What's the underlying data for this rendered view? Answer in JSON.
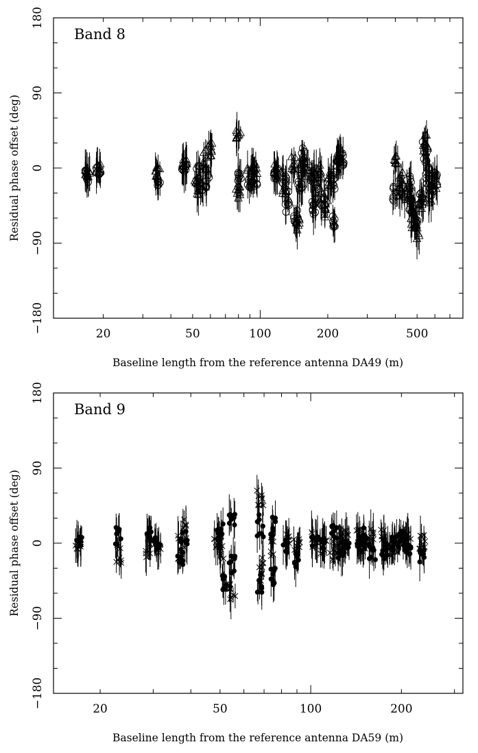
{
  "chart_data": [
    {
      "type": "scatter",
      "title": "Band 8",
      "xlabel": "Baseline length from the reference antenna DA49 (m)",
      "ylabel": "Residual phase offset (deg)",
      "x_scale": "log",
      "xlim": [
        12,
        800
      ],
      "ylim": [
        -180,
        180
      ],
      "xticks": [
        20,
        50,
        100,
        200,
        500
      ],
      "yticks": [
        -180,
        -90,
        0,
        90,
        180
      ],
      "yticklabels": [
        "−180",
        "−90",
        "0",
        "90",
        "180"
      ],
      "grid": false,
      "legend": "none",
      "series": [
        {
          "marker": "circle",
          "groups": [
            [
              17,
              -10,
              8
            ],
            [
              19,
              -5,
              6
            ],
            [
              35,
              -15,
              7
            ],
            [
              46,
              0,
              5
            ],
            [
              53,
              -5,
              10
            ],
            [
              55,
              -18,
              10
            ],
            [
              58,
              -12,
              12
            ],
            [
              80,
              -15,
              10
            ],
            [
              90,
              -18,
              8
            ],
            [
              95,
              -12,
              10
            ],
            [
              118,
              -8,
              8
            ],
            [
              128,
              -15,
              12
            ],
            [
              132,
              -40,
              14
            ],
            [
              145,
              -60,
              10
            ],
            [
              150,
              -5,
              15
            ],
            [
              153,
              -20,
              10
            ],
            [
              155,
              15,
              12
            ],
            [
              170,
              -10,
              12
            ],
            [
              175,
              -50,
              10
            ],
            [
              180,
              -30,
              12
            ],
            [
              190,
              -40,
              12
            ],
            [
              210,
              -15,
              10
            ],
            [
              215,
              -60,
              12
            ],
            [
              220,
              5,
              10
            ],
            [
              230,
              10,
              8
            ],
            [
              400,
              -30,
              12
            ],
            [
              430,
              -25,
              15
            ],
            [
              460,
              -20,
              12
            ],
            [
              470,
              -45,
              12
            ],
            [
              490,
              -55,
              12
            ],
            [
              520,
              -35,
              15
            ],
            [
              540,
              20,
              15
            ],
            [
              560,
              -10,
              12
            ],
            [
              580,
              -25,
              15
            ],
            [
              600,
              -15,
              10
            ]
          ]
        },
        {
          "marker": "triangle",
          "groups": [
            [
              17,
              -5,
              6
            ],
            [
              19,
              0,
              5
            ],
            [
              35,
              -5,
              6
            ],
            [
              46,
              5,
              6
            ],
            [
              52,
              -25,
              12
            ],
            [
              57,
              10,
              12
            ],
            [
              60,
              20,
              10
            ],
            [
              80,
              40,
              6
            ],
            [
              80,
              -30,
              8
            ],
            [
              90,
              -5,
              8
            ],
            [
              95,
              -2,
              8
            ],
            [
              118,
              0,
              6
            ],
            [
              128,
              -20,
              12
            ],
            [
              140,
              5,
              10
            ],
            [
              148,
              -65,
              10
            ],
            [
              160,
              0,
              12
            ],
            [
              175,
              -10,
              10
            ],
            [
              185,
              -5,
              10
            ],
            [
              195,
              -50,
              12
            ],
            [
              205,
              -15,
              10
            ],
            [
              225,
              15,
              8
            ],
            [
              400,
              10,
              6
            ],
            [
              425,
              -15,
              10
            ],
            [
              460,
              -35,
              15
            ],
            [
              480,
              -60,
              12
            ],
            [
              500,
              -75,
              12
            ],
            [
              525,
              -40,
              15
            ],
            [
              545,
              30,
              12
            ],
            [
              570,
              -30,
              15
            ],
            [
              600,
              -20,
              12
            ]
          ]
        }
      ]
    },
    {
      "type": "scatter",
      "title": "Band 9",
      "xlabel": "Baseline length from the reference antenna DA59 (m)",
      "ylabel": "Residual phase offset (deg)",
      "x_scale": "log",
      "xlim": [
        14,
        320
      ],
      "ylim": [
        -180,
        180
      ],
      "xticks": [
        20,
        50,
        100,
        200
      ],
      "yticks": [
        -180,
        -90,
        0,
        90,
        180
      ],
      "yticklabels": [
        "−180",
        "−90",
        "0",
        "90",
        "180"
      ],
      "grid": false,
      "legend": "none",
      "series": [
        {
          "marker": "cross",
          "groups": [
            [
              17,
              0,
              8
            ],
            [
              23,
              -10,
              15
            ],
            [
              29,
              -5,
              12
            ],
            [
              31,
              -3,
              10
            ],
            [
              37,
              -5,
              15
            ],
            [
              38,
              10,
              20
            ],
            [
              49,
              5,
              10
            ],
            [
              51,
              -5,
              15
            ],
            [
              55,
              -60,
              12
            ],
            [
              68,
              60,
              15
            ],
            [
              68,
              -30,
              15
            ],
            [
              75,
              -5,
              12
            ],
            [
              83,
              5,
              10
            ],
            [
              90,
              -5,
              10
            ],
            [
              103,
              5,
              10
            ],
            [
              110,
              -5,
              10
            ],
            [
              118,
              -10,
              12
            ],
            [
              125,
              0,
              12
            ],
            [
              130,
              5,
              10
            ],
            [
              145,
              5,
              12
            ],
            [
              150,
              -5,
              10
            ],
            [
              160,
              10,
              10
            ],
            [
              175,
              5,
              12
            ],
            [
              180,
              -5,
              10
            ],
            [
              190,
              -5,
              12
            ],
            [
              200,
              0,
              10
            ],
            [
              210,
              5,
              8
            ],
            [
              235,
              0,
              10
            ]
          ]
        },
        {
          "marker": "dot",
          "groups": [
            [
              17,
              2,
              6
            ],
            [
              23,
              10,
              12
            ],
            [
              29,
              10,
              10
            ],
            [
              31,
              0,
              8
            ],
            [
              37,
              -15,
              12
            ],
            [
              38,
              5,
              12
            ],
            [
              50,
              15,
              10
            ],
            [
              52,
              -45,
              12
            ],
            [
              55,
              25,
              12
            ],
            [
              55,
              -25,
              12
            ],
            [
              68,
              -50,
              12
            ],
            [
              68,
              20,
              15
            ],
            [
              75,
              20,
              15
            ],
            [
              75,
              -40,
              12
            ],
            [
              83,
              -5,
              10
            ],
            [
              90,
              -20,
              10
            ],
            [
              103,
              0,
              10
            ],
            [
              110,
              0,
              8
            ],
            [
              120,
              15,
              10
            ],
            [
              125,
              -10,
              10
            ],
            [
              132,
              -5,
              10
            ],
            [
              145,
              0,
              10
            ],
            [
              150,
              10,
              10
            ],
            [
              160,
              -10,
              10
            ],
            [
              175,
              -15,
              10
            ],
            [
              190,
              0,
              8
            ],
            [
              200,
              5,
              10
            ],
            [
              210,
              -10,
              8
            ],
            [
              235,
              -15,
              8
            ]
          ]
        }
      ]
    }
  ]
}
